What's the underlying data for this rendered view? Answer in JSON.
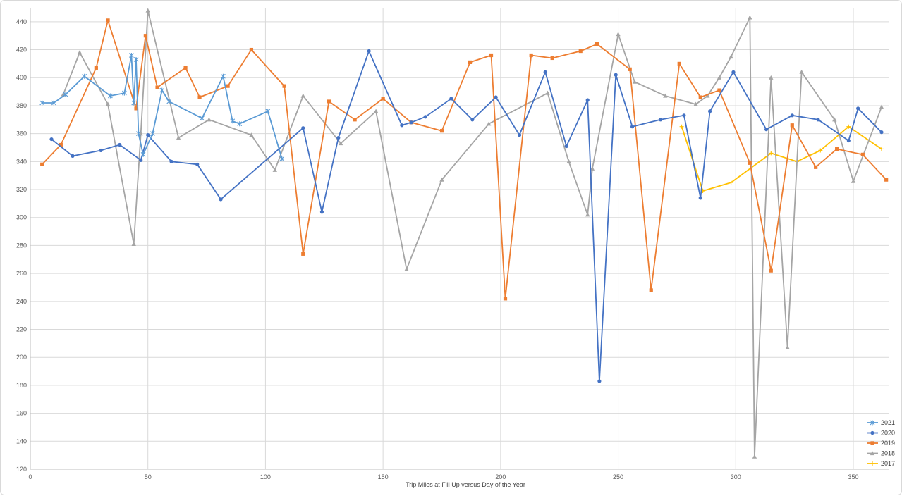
{
  "chart_data": {
    "type": "line",
    "title": "",
    "xlabel": "Trip Miles at Fill Up versus Day of the Year",
    "ylabel": "",
    "xlim": [
      0,
      365
    ],
    "ylim": [
      120,
      450
    ],
    "x_ticks": [
      0,
      50,
      100,
      150,
      200,
      250,
      300,
      350
    ],
    "y_ticks": [
      120,
      140,
      160,
      180,
      200,
      220,
      240,
      260,
      280,
      300,
      320,
      340,
      360,
      380,
      400,
      420,
      440
    ],
    "grid": true,
    "legend_position": "bottom-right",
    "series": [
      {
        "name": "2021",
        "color": "#5b9bd5",
        "marker": "star",
        "x": [
          5,
          10,
          15,
          23,
          34,
          40,
          43,
          44,
          45,
          46,
          48,
          52,
          56,
          59,
          73,
          82,
          86,
          89,
          101,
          107
        ],
        "y": [
          382,
          382,
          388,
          401,
          387,
          389,
          416,
          382,
          413,
          360,
          345,
          360,
          391,
          383,
          371,
          401,
          369,
          367,
          376,
          342
        ]
      },
      {
        "name": "2020",
        "color": "#4472c4",
        "marker": "circle",
        "x": [
          9,
          18,
          30,
          38,
          47,
          50,
          60,
          71,
          81,
          116,
          124,
          131,
          144,
          158,
          162,
          168,
          179,
          188,
          198,
          208,
          219,
          228,
          237,
          242,
          249,
          256,
          268,
          278,
          285,
          289,
          299,
          313,
          324,
          335,
          348,
          352,
          362
        ],
        "y": [
          356,
          344,
          348,
          352,
          341,
          359,
          340,
          338,
          313,
          364,
          304,
          357,
          419,
          366,
          368,
          372,
          385,
          370,
          386,
          359,
          404,
          351,
          384,
          183,
          402,
          365,
          370,
          373,
          314,
          376,
          404,
          363,
          373,
          370,
          355,
          378,
          361
        ]
      },
      {
        "name": "2019",
        "color": "#ed7d31",
        "marker": "square",
        "x": [
          5,
          13,
          28,
          33,
          45,
          49,
          54,
          66,
          72,
          84,
          94,
          108,
          116,
          127,
          138,
          150,
          162,
          175,
          187,
          196,
          202,
          213,
          222,
          234,
          241,
          255,
          264,
          276,
          285,
          293,
          306,
          315,
          324,
          334,
          343,
          354,
          364
        ],
        "y": [
          338,
          352,
          407,
          441,
          378,
          430,
          393,
          407,
          386,
          394,
          420,
          394,
          274,
          383,
          370,
          385,
          368,
          362,
          411,
          416,
          242,
          416,
          414,
          419,
          424,
          406,
          248,
          410,
          386,
          391,
          339,
          262,
          366,
          336,
          349,
          345,
          327
        ]
      },
      {
        "name": "2018",
        "color": "#a5a5a5",
        "marker": "triangle",
        "x": [
          14,
          21,
          33,
          44,
          47,
          50,
          63,
          76,
          94,
          104,
          116,
          132,
          147,
          160,
          175,
          195,
          220,
          229,
          237,
          239,
          250,
          257,
          270,
          283,
          288,
          293,
          298,
          306,
          308,
          315,
          322,
          328,
          342,
          350,
          362
        ],
        "y": [
          388,
          418,
          381,
          281,
          360,
          448,
          357,
          370,
          359,
          334,
          387,
          353,
          376,
          263,
          327,
          367,
          389,
          340,
          302,
          335,
          431,
          397,
          387,
          381,
          387,
          400,
          415,
          443,
          129,
          400,
          207,
          404,
          370,
          326,
          379
        ]
      },
      {
        "name": "2017",
        "color": "#ffc000",
        "marker": "plus",
        "x": [
          277,
          286,
          298,
          315,
          326,
          336,
          348,
          362
        ],
        "y": [
          365,
          319,
          325,
          346,
          340,
          348,
          365,
          349
        ]
      }
    ]
  }
}
